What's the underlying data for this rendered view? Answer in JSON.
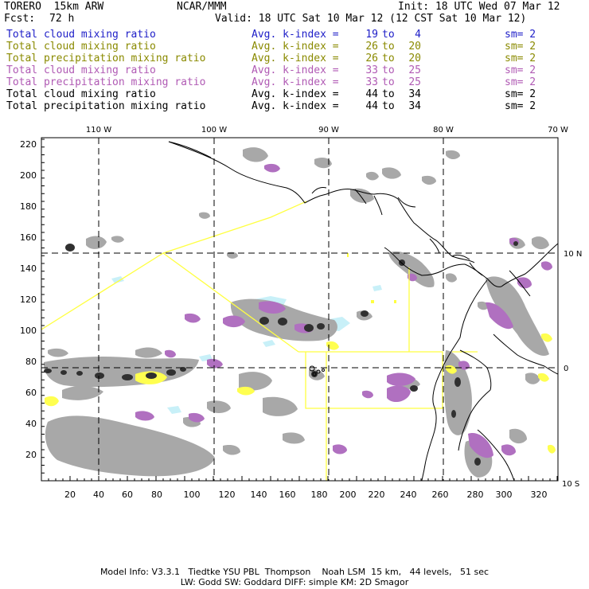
{
  "header": {
    "model": "TORERO  15km ARW",
    "org": "NCAR/MMM",
    "init": "Init: 18 UTC Wed 07 Mar 12",
    "fcst_label": "Fcst:",
    "fcst_value": "72 h",
    "valid": "Valid: 18 UTC Sat 10 Mar 12 (12 CST Sat 10 Mar 12)"
  },
  "legend": [
    {
      "variable": "Total cloud mixing ratio",
      "avg_label": "Avg. k-index =",
      "hi": "19",
      "to": "to",
      "lo": "4",
      "sm": "sm= 2",
      "color": "#2020c8"
    },
    {
      "variable": "Total cloud mixing ratio",
      "avg_label": "Avg. k-index =",
      "hi": "26",
      "to": "to",
      "lo": "20",
      "sm": "sm= 2",
      "color": "#8a8a00"
    },
    {
      "variable": "Total precipitation mixing ratio",
      "avg_label": "Avg. k-index =",
      "hi": "26",
      "to": "to",
      "lo": "20",
      "sm": "sm= 2",
      "color": "#8a8a00"
    },
    {
      "variable": "Total cloud mixing ratio",
      "avg_label": "Avg. k-index =",
      "hi": "33",
      "to": "to",
      "lo": "25",
      "sm": "sm= 2",
      "color": "#b05ab4"
    },
    {
      "variable": "Total precipitation mixing ratio",
      "avg_label": "Avg. k-index =",
      "hi": "33",
      "to": "to",
      "lo": "25",
      "sm": "sm= 2",
      "color": "#b05ab4"
    },
    {
      "variable": "Total cloud mixing ratio",
      "avg_label": "Avg. k-index =",
      "hi": "44",
      "to": "to",
      "lo": "34",
      "sm": "sm= 2",
      "color": "#000000"
    },
    {
      "variable": "Total precipitation mixing ratio",
      "avg_label": "Avg. k-index =",
      "hi": "44",
      "to": "to",
      "lo": "34",
      "sm": "sm= 2",
      "color": "#000000"
    }
  ],
  "map": {
    "x_ticks": [
      "20",
      "40",
      "60",
      "80",
      "100",
      "120",
      "140",
      "160",
      "180",
      "200",
      "220",
      "240",
      "260",
      "280",
      "300",
      "320"
    ],
    "y_ticks": [
      "20",
      "40",
      "60",
      "80",
      "100",
      "120",
      "140",
      "160",
      "180",
      "200",
      "220"
    ],
    "lon_labels": [
      "110 W",
      "100 W",
      "90 W",
      "80 W",
      "70 W"
    ],
    "lat_labels": [
      "10 N",
      "0",
      "10 S"
    ],
    "colors": {
      "cloud_gray": "#a8a8a8",
      "dark_core": "#303030",
      "purple": "#b070c0",
      "yellow": "#ffff50",
      "cyan": "#c8f0f8",
      "boundary_yellow": "#ffff40"
    }
  },
  "footer": {
    "line1": "Model Info: V3.3.1   Tiedtke YSU PBL  Thompson    Noah LSM  15 km,   44 levels,   51 sec",
    "line2": "LW: Godd SW: Goddard DIFF: simple KM: 2D Smagor"
  }
}
